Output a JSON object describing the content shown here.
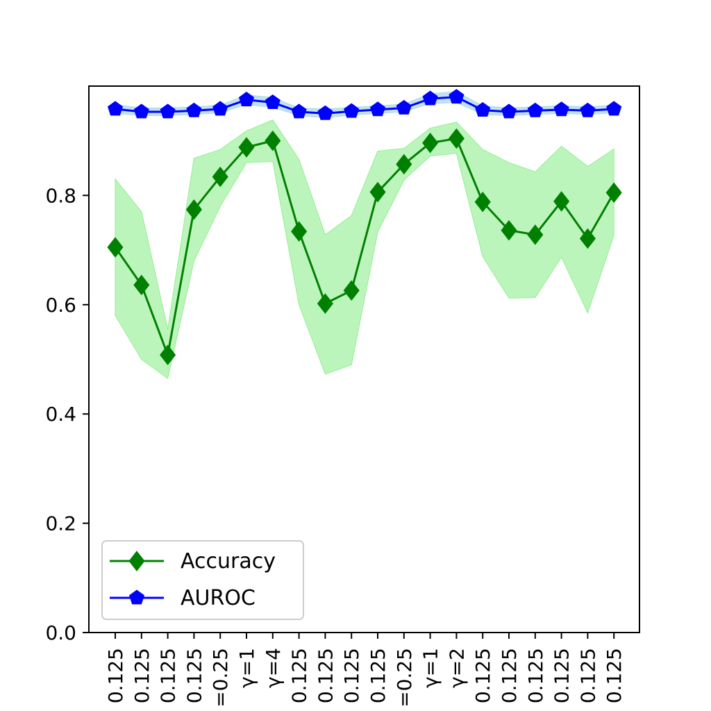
{
  "chart_data": {
    "type": "line",
    "title": "",
    "xlabel": "",
    "ylabel": "",
    "ylim": [
      0,
      1.0
    ],
    "yticks": [
      "0.0",
      "0.2",
      "0.4",
      "0.6",
      "0.8"
    ],
    "ytick_values": [
      0.0,
      0.2,
      0.4,
      0.6,
      0.8
    ],
    "categories": [
      "0.125",
      "0.125",
      "0.125",
      "0.125",
      "=0.25",
      "γ=1",
      "γ=4",
      "0.125",
      "0.125",
      "0.125",
      "0.125",
      "=0.25",
      "γ=1",
      "γ=2",
      "0.125",
      "0.125",
      "0.125",
      "0.125",
      "0.125",
      "0.125"
    ],
    "legend_position": "lower-left",
    "grid": false,
    "series": [
      {
        "name": "Accuracy",
        "color": "#008000",
        "band_color": "#90ee90",
        "marker": "diamond",
        "values": [
          0.705,
          0.636,
          0.508,
          0.774,
          0.834,
          0.888,
          0.9,
          0.734,
          0.602,
          0.626,
          0.806,
          0.857,
          0.896,
          0.904,
          0.788,
          0.736,
          0.728,
          0.789,
          0.721,
          0.805
        ],
        "lower": [
          0.58,
          0.5,
          0.465,
          0.68,
          0.78,
          0.86,
          0.862,
          0.6,
          0.473,
          0.49,
          0.733,
          0.828,
          0.872,
          0.877,
          0.688,
          0.612,
          0.613,
          0.687,
          0.585,
          0.727
        ],
        "upper": [
          0.83,
          0.77,
          0.555,
          0.868,
          0.884,
          0.918,
          0.938,
          0.866,
          0.728,
          0.763,
          0.881,
          0.886,
          0.923,
          0.934,
          0.884,
          0.86,
          0.843,
          0.89,
          0.853,
          0.885
        ]
      },
      {
        "name": "AUROC",
        "color": "#0000ff",
        "band_color": "#add8e6",
        "marker": "pentagon",
        "values": [
          0.958,
          0.953,
          0.953,
          0.955,
          0.958,
          0.975,
          0.97,
          0.953,
          0.95,
          0.954,
          0.957,
          0.96,
          0.977,
          0.98,
          0.956,
          0.953,
          0.955,
          0.957,
          0.955,
          0.958
        ],
        "lower": [
          0.95,
          0.946,
          0.946,
          0.948,
          0.951,
          0.966,
          0.961,
          0.946,
          0.942,
          0.947,
          0.95,
          0.953,
          0.968,
          0.97,
          0.948,
          0.946,
          0.948,
          0.95,
          0.948,
          0.951
        ],
        "upper": [
          0.966,
          0.96,
          0.96,
          0.962,
          0.965,
          0.984,
          0.979,
          0.96,
          0.958,
          0.961,
          0.964,
          0.967,
          0.986,
          0.99,
          0.964,
          0.96,
          0.962,
          0.964,
          0.962,
          0.965
        ]
      }
    ]
  }
}
